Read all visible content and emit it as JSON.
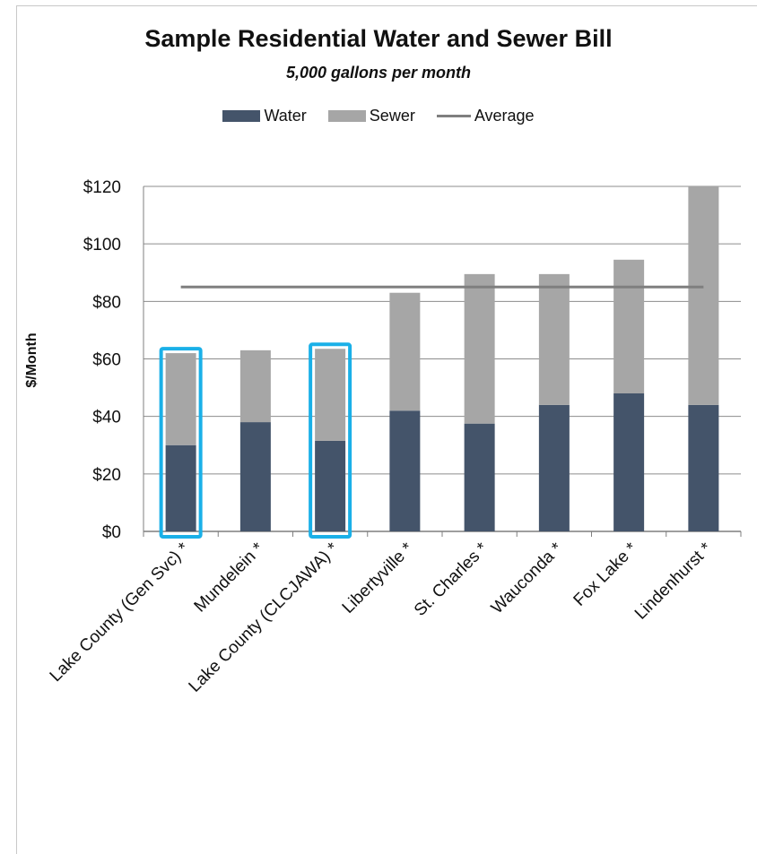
{
  "chart_data": {
    "type": "bar",
    "stacked": true,
    "title": "Sample Residential Water and Sewer Bill",
    "subtitle": "5,000 gallons per month",
    "xlabel": "",
    "ylabel": "$/Month",
    "ylim": [
      0,
      120
    ],
    "yticks": [
      "$0",
      "$20",
      "$40",
      "$60",
      "$80",
      "$100",
      "$120"
    ],
    "ytick_values": [
      0,
      20,
      40,
      60,
      80,
      100,
      120
    ],
    "grid": true,
    "legend_position": "top-center",
    "categories": [
      "Lake County (Gen Svc) *",
      "Mundelein *",
      "Lake County (CLCJAWA) *",
      "Libertyville *",
      "St. Charles *",
      "Wauconda *",
      "Fox Lake *",
      "Lindenhurst *"
    ],
    "series": [
      {
        "name": "Water",
        "color": "#44546a",
        "values": [
          30,
          38,
          31.5,
          42,
          37.5,
          44,
          48,
          44
        ]
      },
      {
        "name": "Sewer",
        "color": "#a6a6a6",
        "values": [
          32,
          25,
          32,
          41,
          52,
          45.5,
          46.5,
          76
        ]
      }
    ],
    "average": {
      "name": "Average",
      "color": "#7f7f7f",
      "value": 85
    },
    "highlighted_categories": [
      0,
      2
    ],
    "highlight_color": "#1ab0e8"
  }
}
